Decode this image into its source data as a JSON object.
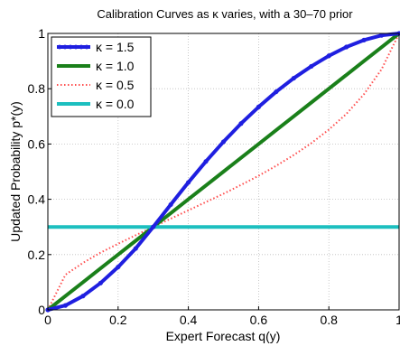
{
  "chart_data": {
    "type": "line",
    "title": "Calibration Curves as κ varies, with a 30–70 prior",
    "xlabel": "Expert Forecast q(y)",
    "ylabel": "Updated Probability p*(y)",
    "xlim": [
      0,
      1
    ],
    "ylim": [
      0,
      1
    ],
    "xticks": [
      0,
      0.2,
      0.4,
      0.6,
      0.8,
      1
    ],
    "yticks": [
      0,
      0.2,
      0.4,
      0.6,
      0.8,
      1
    ],
    "xtick_labels": [
      "0",
      "0.2",
      "0.4",
      "0.6",
      "0.8",
      "1"
    ],
    "ytick_labels": [
      "0",
      "0.2",
      "0.4",
      "0.6",
      "0.8",
      "1"
    ],
    "grid": true,
    "legend_position": "top-left",
    "prior": 0.3,
    "x": [
      0,
      0.05,
      0.1,
      0.15,
      0.2,
      0.25,
      0.3,
      0.35,
      0.4,
      0.45,
      0.5,
      0.55,
      0.6,
      0.65,
      0.7,
      0.75,
      0.8,
      0.85,
      0.9,
      0.95,
      1
    ],
    "series": [
      {
        "name": "κ = 1.5",
        "color": "#1f1fe0",
        "style": "solid-markers",
        "values": [
          0,
          0.016,
          0.05,
          0.097,
          0.155,
          0.222,
          0.3,
          0.381,
          0.461,
          0.537,
          0.608,
          0.674,
          0.734,
          0.789,
          0.838,
          0.881,
          0.919,
          0.951,
          0.976,
          0.993,
          1
        ]
      },
      {
        "name": "κ = 1.0",
        "color": "#1a801a",
        "style": "solid",
        "values": [
          0,
          0.05,
          0.1,
          0.15,
          0.2,
          0.25,
          0.3,
          0.35,
          0.4,
          0.45,
          0.5,
          0.55,
          0.6,
          0.65,
          0.7,
          0.75,
          0.8,
          0.85,
          0.9,
          0.95,
          1
        ]
      },
      {
        "name": "κ = 0.5",
        "color": "#ff4d4d",
        "style": "dotted",
        "values": [
          0,
          0.127,
          0.17,
          0.207,
          0.239,
          0.27,
          0.3,
          0.33,
          0.36,
          0.39,
          0.42,
          0.452,
          0.485,
          0.521,
          0.56,
          0.603,
          0.652,
          0.709,
          0.78,
          0.87,
          1
        ]
      },
      {
        "name": "κ = 0.0",
        "color": "#1cbfbf",
        "style": "solid",
        "values": [
          0.3,
          0.3,
          0.3,
          0.3,
          0.3,
          0.3,
          0.3,
          0.3,
          0.3,
          0.3,
          0.3,
          0.3,
          0.3,
          0.3,
          0.3,
          0.3,
          0.3,
          0.3,
          0.3,
          0.3,
          0.3
        ]
      }
    ]
  }
}
